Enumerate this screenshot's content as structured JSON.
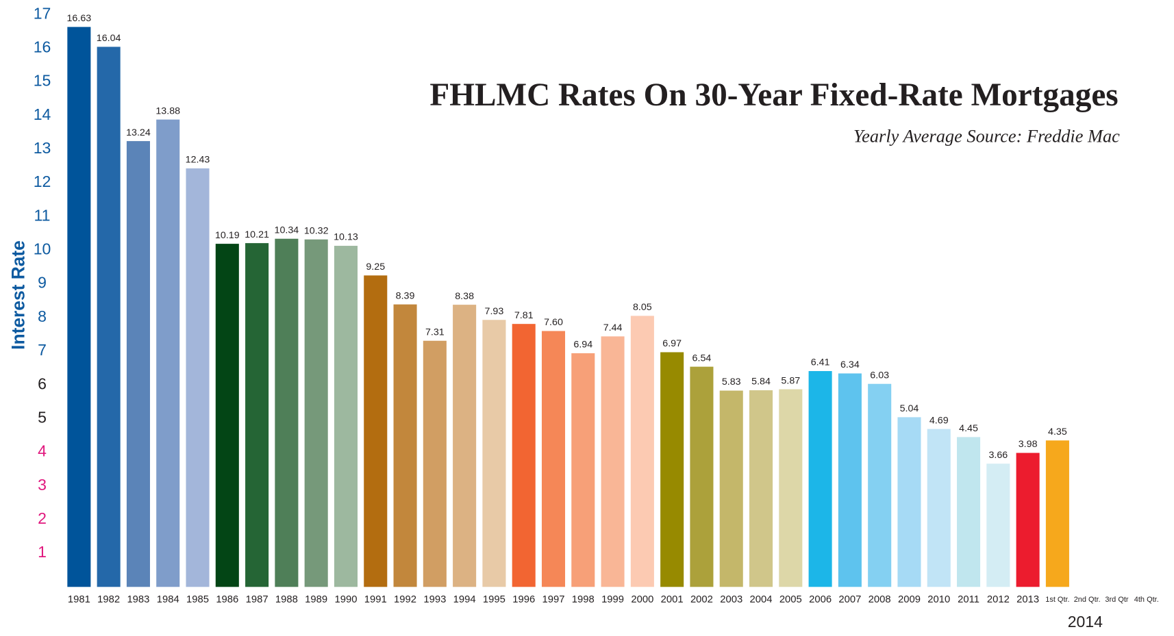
{
  "chart_data": {
    "type": "bar",
    "title": "FHLMC Rates On 30-Year Fixed-Rate Mortgages",
    "subtitle": "Yearly Average Source: Freddie Mac",
    "y_label": "Interest Rate",
    "annotation": "2014",
    "categories": [
      "1981",
      "1982",
      "1983",
      "1984",
      "1985",
      "1986",
      "1987",
      "1988",
      "1989",
      "1990",
      "1991",
      "1992",
      "1993",
      "1994",
      "1995",
      "1996",
      "1997",
      "1998",
      "1999",
      "2000",
      "2001",
      "2002",
      "2003",
      "2004",
      "2005",
      "2006",
      "2007",
      "2008",
      "2009",
      "2010",
      "2011",
      "2012",
      "2013",
      "1st Qtr.",
      "2nd Qtr.",
      "3rd Qtr",
      "4th Qtr."
    ],
    "values": [
      16.63,
      16.04,
      13.24,
      13.88,
      12.43,
      10.19,
      10.21,
      10.34,
      10.32,
      10.13,
      9.25,
      8.39,
      7.31,
      8.38,
      7.93,
      7.81,
      7.6,
      6.94,
      7.44,
      8.05,
      6.97,
      6.54,
      5.83,
      5.84,
      5.87,
      6.41,
      6.34,
      6.03,
      5.04,
      4.69,
      4.45,
      3.66,
      3.98,
      4.35,
      null,
      null,
      null
    ],
    "value_labels": [
      "16.63",
      "16.04",
      "13.24",
      "13.88",
      "12.43",
      "10.19",
      "10.21",
      "10.34",
      "10.32",
      "10.13",
      "9.25",
      "8.39",
      "7.31",
      "8.38",
      "7.93",
      "7.81",
      "7.60",
      "6.94",
      "7.44",
      "8.05",
      "6.97",
      "6.54",
      "5.83",
      "5.84",
      "5.87",
      "6.41",
      "6.34",
      "6.03",
      "5.04",
      "4.69",
      "4.45",
      "3.66",
      "3.98",
      "4.35",
      null,
      null,
      null
    ],
    "colors": [
      "#00549a",
      "#2468a9",
      "#5b84b8",
      "#7f9dca",
      "#a3b6da",
      "#034515",
      "#256535",
      "#4f7f58",
      "#76997a",
      "#9db89f",
      "#b36d10",
      "#c2873c",
      "#d19e63",
      "#dcb283",
      "#e8caa7",
      "#f26532",
      "#f58757",
      "#f7a078",
      "#f9b696",
      "#fccab2",
      "#978a00",
      "#aca13b",
      "#c4b76a",
      "#d0c68a",
      "#ddd7a8",
      "#1cb6e8",
      "#5ec3ee",
      "#84d0f2",
      "#a6daf5",
      "#c1e4f6",
      "#c0e6ee",
      "#d4edf4",
      "#ec1c2e",
      "#f6a81c",
      null,
      null,
      null
    ],
    "ylim": [
      0,
      17
    ],
    "yticks": [
      1,
      2,
      3,
      4,
      5,
      6,
      7,
      8,
      9,
      10,
      11,
      12,
      13,
      14,
      15,
      16,
      17
    ],
    "ytick_colors": [
      "#e0177d",
      "#e0177d",
      "#e0177d",
      "#e0177d",
      "#231f20",
      "#231f20",
      "#0d5aa0",
      "#0d5aa0",
      "#0d5aa0",
      "#0d5aa0",
      "#0d5aa0",
      "#0d5aa0",
      "#0d5aa0",
      "#0d5aa0",
      "#0d5aa0",
      "#0d5aa0",
      "#0d5aa0"
    ],
    "grid": false
  }
}
